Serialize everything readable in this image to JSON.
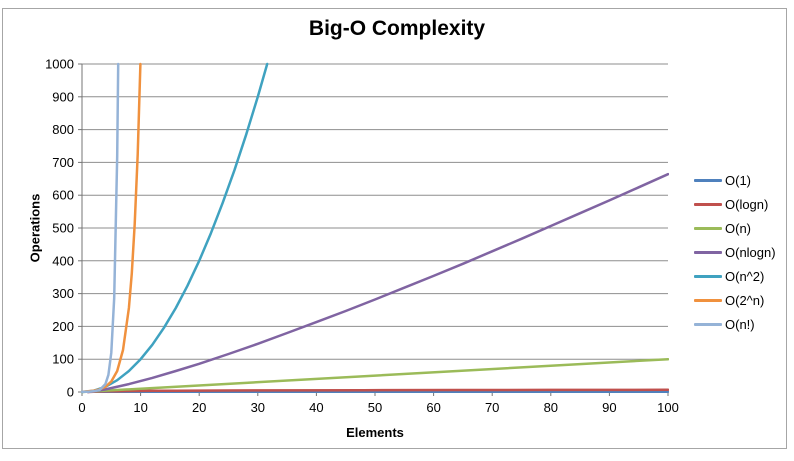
{
  "chart_data": {
    "type": "line",
    "title": "Big-O Complexity",
    "xlabel": "Elements",
    "ylabel": "Operations",
    "xlim": [
      0,
      100
    ],
    "ylim": [
      0,
      1000
    ],
    "x_ticks": [
      0,
      10,
      20,
      30,
      40,
      50,
      60,
      70,
      80,
      90,
      100
    ],
    "y_ticks": [
      0,
      100,
      200,
      300,
      400,
      500,
      600,
      700,
      800,
      900,
      1000
    ],
    "grid": "horizontal",
    "legend_position": "right",
    "colors": {
      "gridline": "#8e8e8e",
      "axis": "#747474",
      "border": "#a6a6a6",
      "text": "#000000"
    },
    "series": [
      {
        "name": "O(1)",
        "color": "#4F81BD",
        "points": [
          [
            0,
            1
          ],
          [
            100,
            1
          ]
        ]
      },
      {
        "name": "O(logn)",
        "color": "#C0504D",
        "points": [
          [
            1,
            0
          ],
          [
            2,
            1
          ],
          [
            3,
            1.58
          ],
          [
            4,
            2
          ],
          [
            6,
            2.58
          ],
          [
            8,
            3
          ],
          [
            12,
            3.58
          ],
          [
            16,
            4
          ],
          [
            24,
            4.58
          ],
          [
            32,
            5
          ],
          [
            48,
            5.58
          ],
          [
            64,
            6
          ],
          [
            80,
            6.32
          ],
          [
            100,
            6.64
          ]
        ]
      },
      {
        "name": "O(n)",
        "color": "#9BBB59",
        "points": [
          [
            0,
            0
          ],
          [
            100,
            100
          ]
        ]
      },
      {
        "name": "O(nlogn)",
        "color": "#8064A2",
        "points": [
          [
            1,
            0
          ],
          [
            2,
            2
          ],
          [
            4,
            8
          ],
          [
            8,
            24
          ],
          [
            12,
            43
          ],
          [
            16,
            64
          ],
          [
            20,
            86
          ],
          [
            25,
            116
          ],
          [
            30,
            147
          ],
          [
            35,
            180
          ],
          [
            40,
            213
          ],
          [
            45,
            247
          ],
          [
            50,
            282
          ],
          [
            55,
            318
          ],
          [
            60,
            354
          ],
          [
            65,
            391
          ],
          [
            70,
            429
          ],
          [
            75,
            467
          ],
          [
            80,
            506
          ],
          [
            85,
            545
          ],
          [
            90,
            584
          ],
          [
            95,
            624
          ],
          [
            100,
            664
          ]
        ]
      },
      {
        "name": "O(n^2)",
        "color": "#3FA2C0",
        "points": [
          [
            0,
            0
          ],
          [
            2,
            4
          ],
          [
            4,
            16
          ],
          [
            6,
            36
          ],
          [
            8,
            64
          ],
          [
            10,
            100
          ],
          [
            12,
            144
          ],
          [
            14,
            196
          ],
          [
            16,
            256
          ],
          [
            18,
            324
          ],
          [
            20,
            400
          ],
          [
            22,
            484
          ],
          [
            24,
            576
          ],
          [
            26,
            676
          ],
          [
            28,
            784
          ],
          [
            30,
            900
          ],
          [
            31.6,
            1000
          ]
        ]
      },
      {
        "name": "O(2^n)",
        "color": "#F0913E",
        "points": [
          [
            0,
            1
          ],
          [
            1,
            2
          ],
          [
            2,
            4
          ],
          [
            3,
            8
          ],
          [
            4,
            16
          ],
          [
            5,
            32
          ],
          [
            6,
            64
          ],
          [
            7,
            128
          ],
          [
            8,
            256
          ],
          [
            8.5,
            362
          ],
          [
            9,
            512
          ],
          [
            9.5,
            724
          ],
          [
            9.97,
            1000
          ]
        ]
      },
      {
        "name": "O(n!)",
        "color": "#95B3D7",
        "points": [
          [
            0,
            1
          ],
          [
            1,
            1
          ],
          [
            2,
            2
          ],
          [
            3,
            6
          ],
          [
            4,
            24
          ],
          [
            4.5,
            52
          ],
          [
            5,
            120
          ],
          [
            5.5,
            287
          ],
          [
            6,
            720
          ],
          [
            6.17,
            1000
          ]
        ]
      }
    ]
  }
}
